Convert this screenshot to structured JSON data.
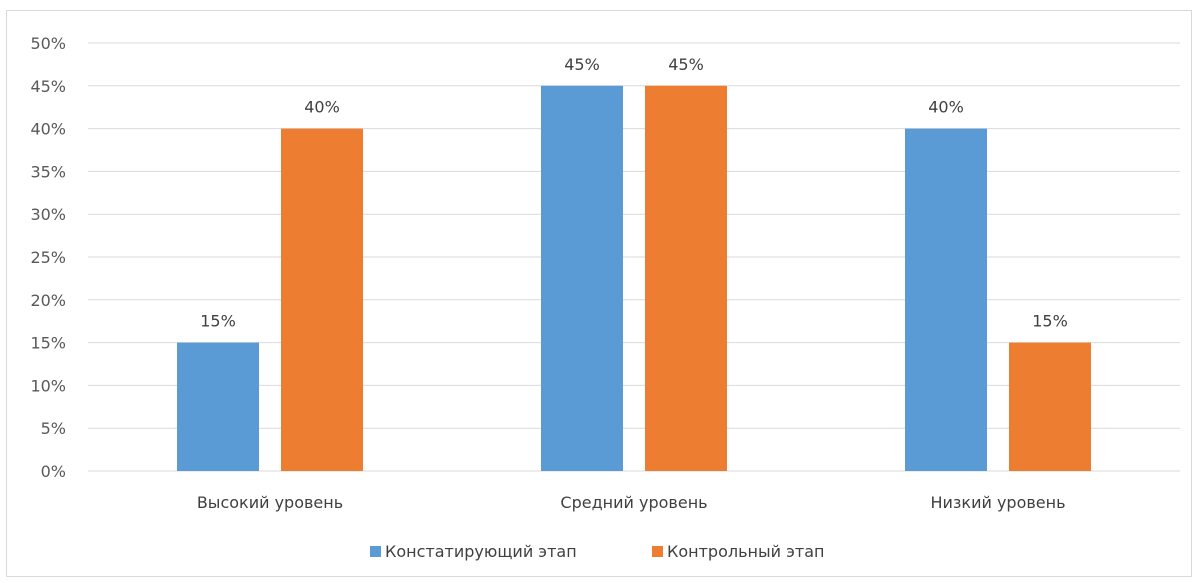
{
  "chart_data": {
    "type": "bar",
    "categories": [
      "Высокий уровень",
      "Средний уровень",
      "Низкий уровень"
    ],
    "series": [
      {
        "name": "Констатирующий этап",
        "values": [
          15,
          45,
          40
        ],
        "labels": [
          "15%",
          "45%",
          "40%"
        ],
        "color": "#5B9BD5"
      },
      {
        "name": "Контрольный этап",
        "values": [
          40,
          45,
          15
        ],
        "labels": [
          "40%",
          "45%",
          "15%"
        ],
        "color": "#ED7D31"
      }
    ],
    "ylim": [
      0,
      50
    ],
    "yticks": [
      0,
      5,
      10,
      15,
      20,
      25,
      30,
      35,
      40,
      45,
      50
    ],
    "ytick_labels": [
      "0%",
      "5%",
      "10%",
      "15%",
      "20%",
      "25%",
      "30%",
      "35%",
      "40%",
      "45%",
      "50%"
    ],
    "grid": true,
    "legend": "bottom",
    "title": "",
    "xlabel": "",
    "ylabel": "",
    "gridline_color": "#d9d9d9"
  }
}
